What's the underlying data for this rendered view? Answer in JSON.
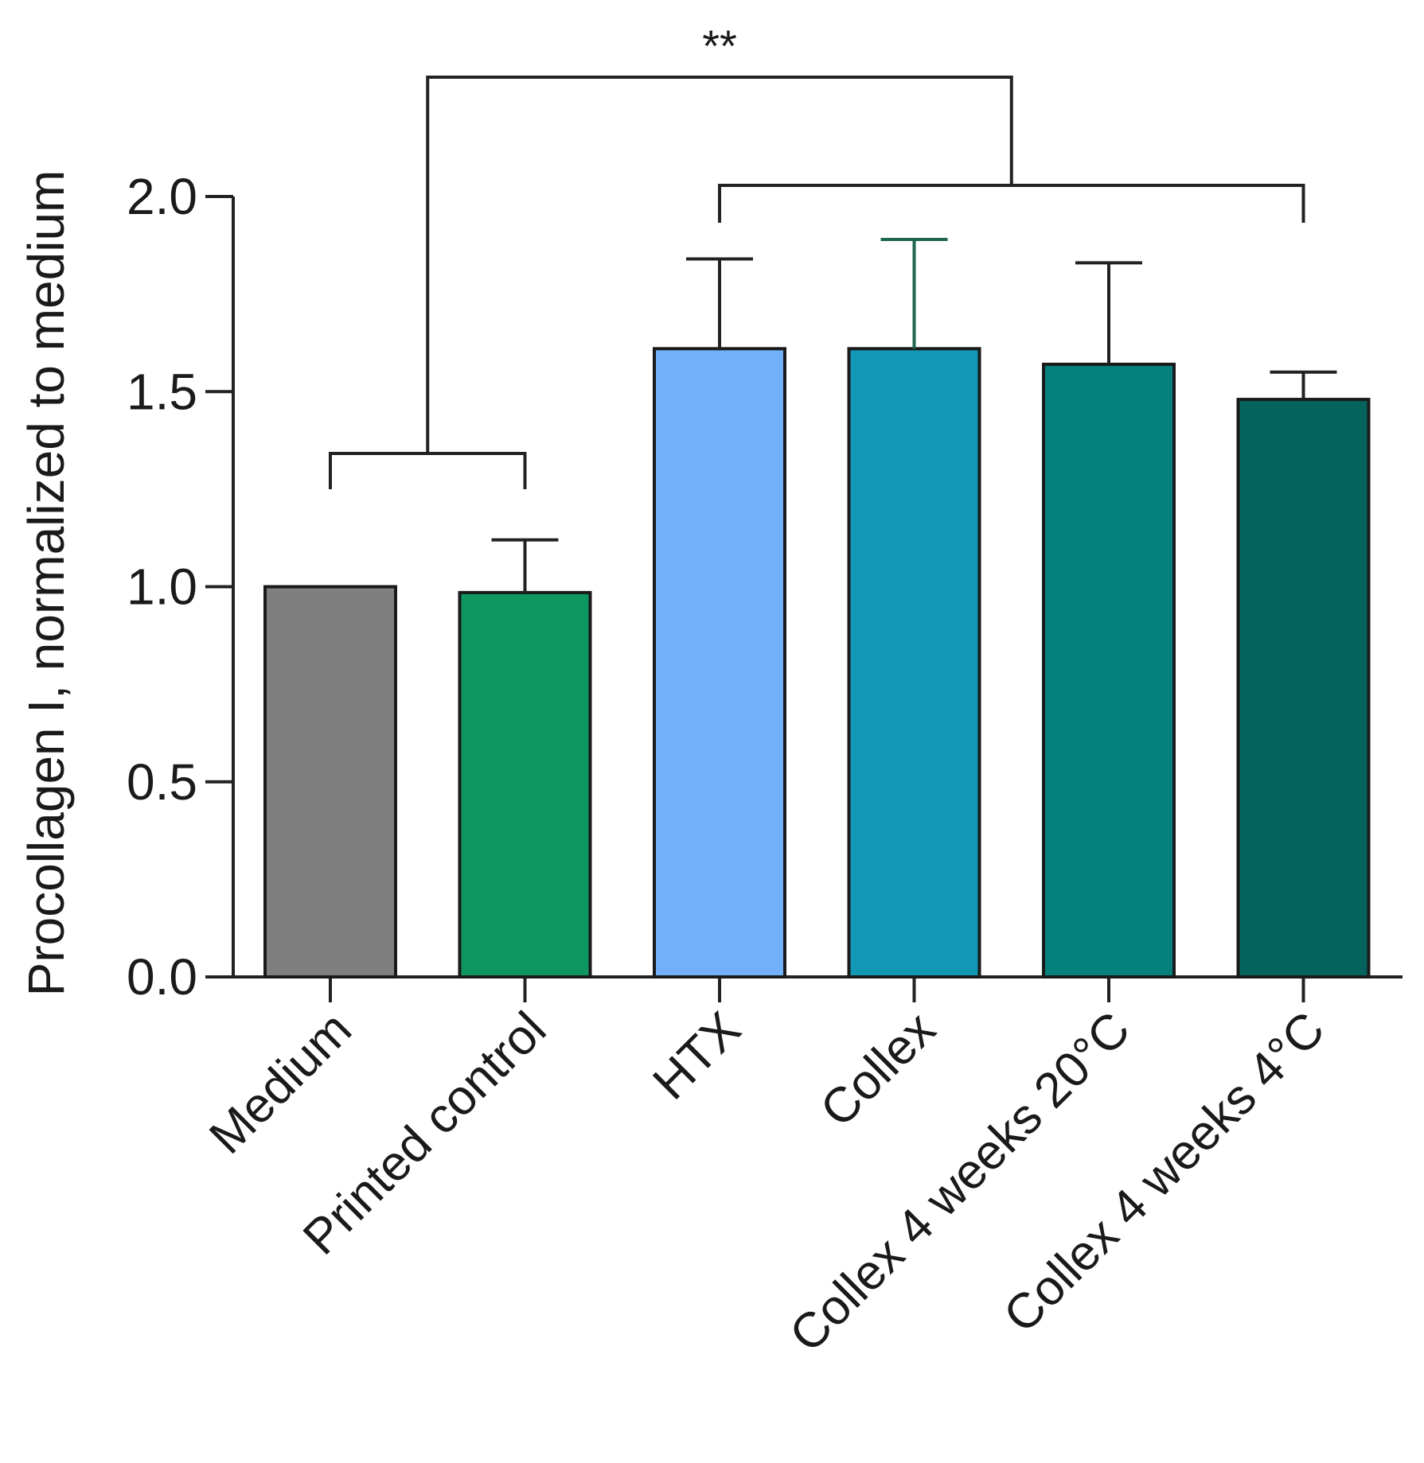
{
  "chart_data": {
    "type": "bar",
    "title": "",
    "xlabel": "",
    "ylabel": "Procollagen I, normalized to medium",
    "ylim": [
      0,
      2.0
    ],
    "yticks": [
      "0.0",
      "0.5",
      "1.0",
      "1.5",
      "2.0"
    ],
    "categories": [
      "Medium",
      "Printed control",
      "HTX",
      "Collex",
      "Collex 4 weeks 20°C",
      "Collex 4 weeks 4°C"
    ],
    "values": [
      1.0,
      0.985,
      1.61,
      1.61,
      1.57,
      1.48
    ],
    "error_upper": [
      0.0,
      0.135,
      0.23,
      0.28,
      0.26,
      0.07
    ],
    "colors": [
      "#7f7f7f",
      "#0e9660",
      "#72b1fa",
      "#1298b4",
      "#05807c",
      "#05635e"
    ],
    "error_colors": [
      "#222222",
      "#222222",
      "#222222",
      "#1d6650",
      "#222222",
      "#222222"
    ],
    "significance": {
      "label": "**",
      "group_a": [
        "Medium",
        "Printed control"
      ],
      "group_b": [
        "HTX",
        "Collex",
        "Collex 4 weeks 20°C",
        "Collex 4 weeks 4°C"
      ]
    }
  }
}
